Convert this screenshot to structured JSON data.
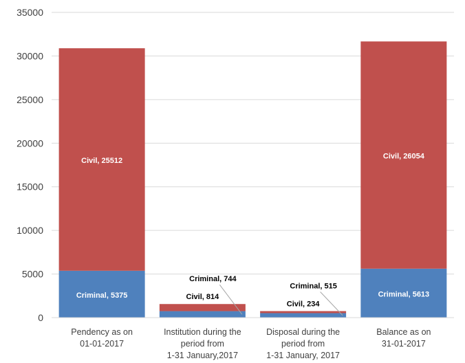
{
  "chart_data": {
    "type": "bar",
    "stacked": true,
    "categories": [
      [
        "Pendency as on",
        "01-01-2017"
      ],
      [
        "Institution during the",
        "period from",
        "1-31 January,2017"
      ],
      [
        "Disposal during the",
        "period from",
        "1-31 January, 2017"
      ],
      [
        "Balance as on",
        "31-01-2017"
      ]
    ],
    "series": [
      {
        "name": "Criminal",
        "color": "#4f81bd",
        "values": [
          5375,
          744,
          515,
          5613
        ]
      },
      {
        "name": "Civil",
        "color": "#c0504d",
        "values": [
          25512,
          814,
          234,
          26054
        ]
      }
    ],
    "data_labels": [
      [
        "Criminal, 5375",
        "Criminal, 744",
        "Criminal, 515",
        "Criminal, 5613"
      ],
      [
        "Civil, 25512",
        "Civil, 814",
        "Civil, 234",
        "Civil, 26054"
      ]
    ],
    "yticks": [
      "0",
      "5000",
      "10000",
      "15000",
      "20000",
      "25000",
      "30000",
      "35000"
    ],
    "ylim": [
      0,
      35000
    ],
    "grid": true,
    "title": "",
    "xlabel": "",
    "ylabel": ""
  }
}
